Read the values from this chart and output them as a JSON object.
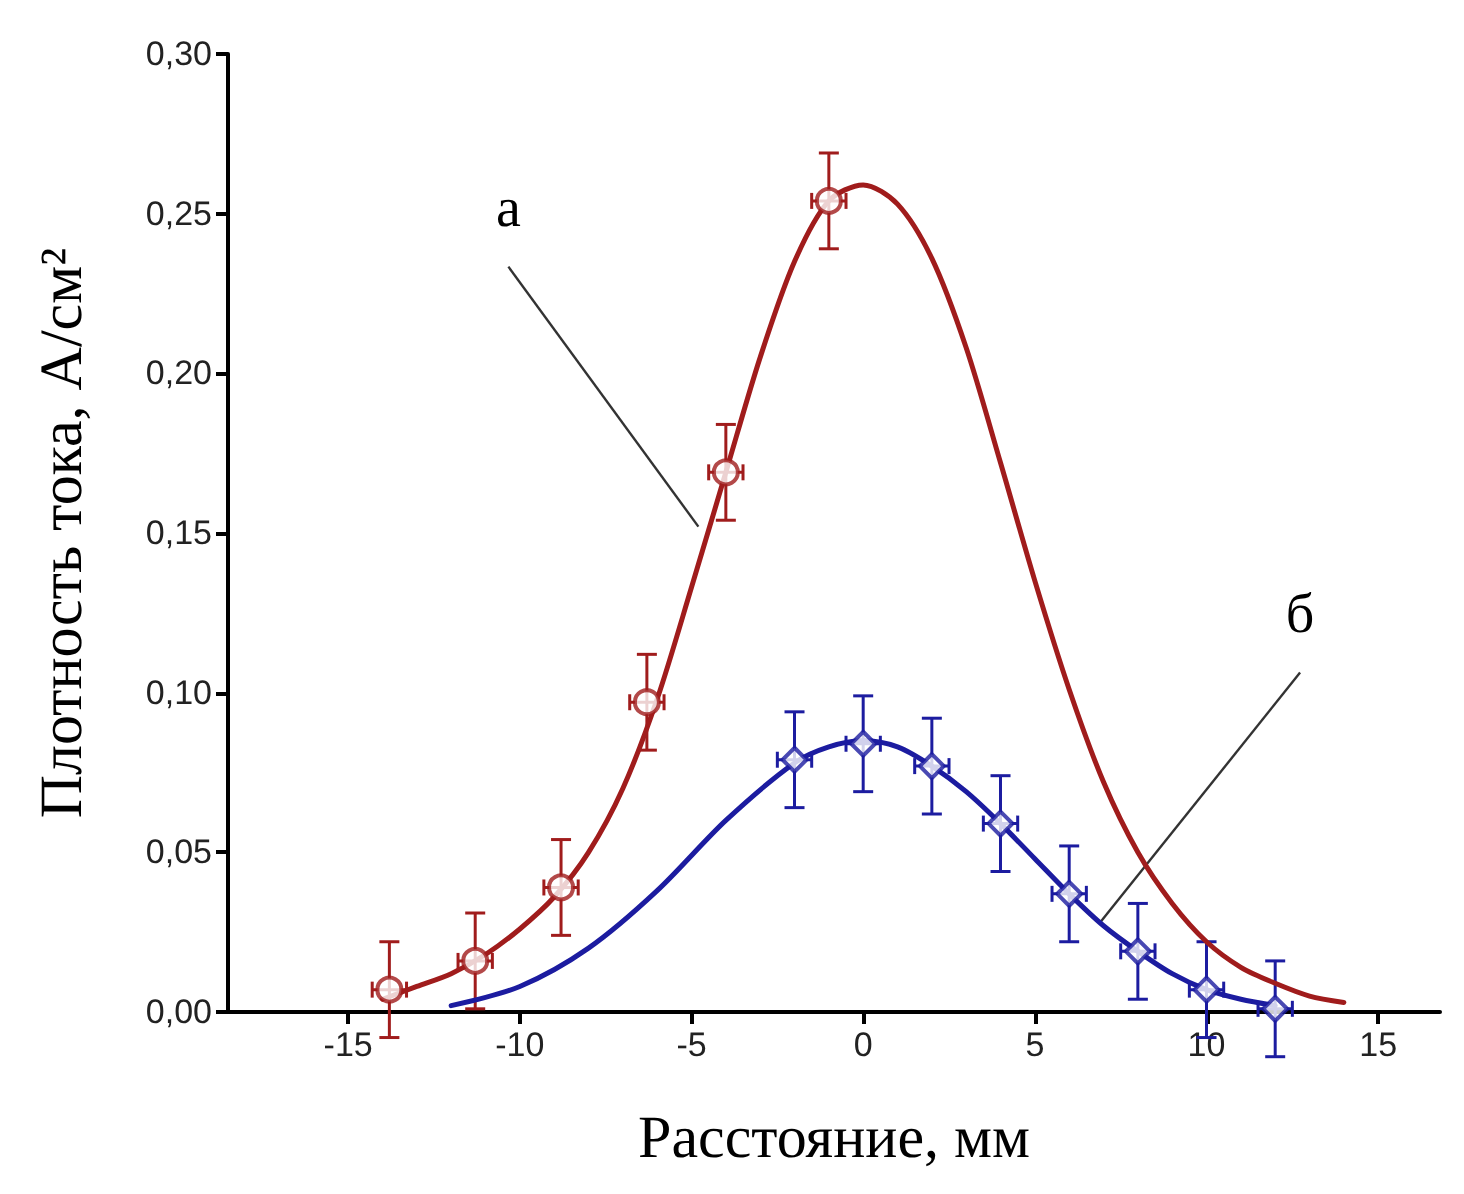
{
  "chart_data": {
    "type": "scatter",
    "xlabel": "Расстояние, мм",
    "ylabel": "Плотность тока, А/см²",
    "xlim": [
      -18.5,
      16.8
    ],
    "xticks": [
      -15,
      -10,
      -5,
      0,
      5,
      10,
      15
    ],
    "ylim": [
      0,
      0.3
    ],
    "yticks": [
      {
        "value": 0,
        "label": "0,00"
      },
      {
        "value": 0.05,
        "label": "0,05"
      },
      {
        "value": 0.1,
        "label": "0,10"
      },
      {
        "value": 0.15,
        "label": "0,15"
      },
      {
        "value": 0.2,
        "label": "0,20"
      },
      {
        "value": 0.25,
        "label": "0,25"
      },
      {
        "value": 0.3,
        "label": "0,30"
      }
    ],
    "grid": false,
    "series": [
      {
        "type": "line",
        "color": "#a01c1c",
        "marker": "none",
        "x": [
          -14,
          -13,
          -12,
          -11,
          -10,
          -9,
          -8,
          -7,
          -6,
          -5,
          -4,
          -3,
          -2,
          -1,
          0,
          1,
          2,
          3,
          4,
          5,
          6,
          7,
          8,
          9,
          10,
          11,
          12,
          13,
          14
        ],
        "values": [
          0.004,
          0.008,
          0.012,
          0.018,
          0.026,
          0.036,
          0.05,
          0.07,
          0.098,
          0.133,
          0.169,
          0.205,
          0.235,
          0.254,
          0.259,
          0.253,
          0.236,
          0.208,
          0.172,
          0.135,
          0.101,
          0.072,
          0.05,
          0.034,
          0.022,
          0.014,
          0.009,
          0.005,
          0.003
        ]
      },
      {
        "type": "line",
        "color": "#1c1ca0",
        "marker": "none",
        "x": [
          -12,
          -10,
          -8,
          -6,
          -4,
          -2,
          -1,
          0,
          1,
          2,
          3,
          4,
          5,
          6,
          7,
          8,
          9,
          10,
          11,
          12
        ],
        "values": [
          0.002,
          0.008,
          0.02,
          0.038,
          0.06,
          0.078,
          0.083,
          0.085,
          0.083,
          0.077,
          0.069,
          0.059,
          0.048,
          0.037,
          0.027,
          0.019,
          0.012,
          0.007,
          0.004,
          0.002
        ]
      },
      {
        "color": "#a01c1c",
        "marker": "circle",
        "x": [
          -13.8,
          -11.3,
          -8.8,
          -6.3,
          -4,
          -1
        ],
        "values": [
          0.007,
          0.016,
          0.039,
          0.097,
          0.169,
          0.254
        ],
        "errors": [
          0.015,
          0.015,
          0.015,
          0.015,
          0.015,
          0.015
        ],
        "xerrors": [
          0.5,
          0.5,
          0.5,
          0.5,
          0.5,
          0.5
        ]
      },
      {
        "color": "#1c1ca0",
        "marker": "diamond",
        "x": [
          -2,
          0,
          2,
          4,
          6,
          8,
          10,
          12
        ],
        "values": [
          0.079,
          0.084,
          0.077,
          0.059,
          0.037,
          0.019,
          0.007,
          0.001
        ],
        "errors": [
          0.015,
          0.015,
          0.015,
          0.015,
          0.015,
          0.015,
          0.015,
          0.015
        ],
        "xerrors": [
          0.5,
          0.5,
          0.5,
          0.5,
          0.5,
          0.5,
          0.5,
          0.5
        ]
      }
    ],
    "annotations": [
      {
        "text": "а",
        "x": -4.8,
        "y": 0.152
      },
      {
        "text": "б",
        "x": 6.9,
        "y": 0.028
      }
    ]
  }
}
